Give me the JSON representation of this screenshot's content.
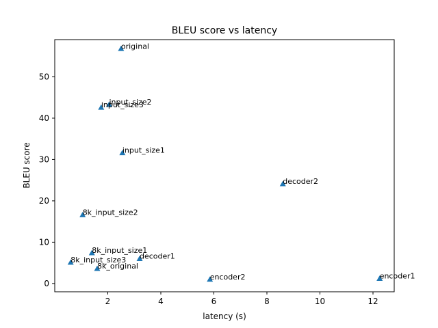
{
  "chart_data": {
    "type": "scatter",
    "title": "BLEU score vs latency",
    "xlabel": "latency (s)",
    "ylabel": "BLEU score",
    "xlim": [
      0,
      12.8
    ],
    "ylim": [
      -2,
      59
    ],
    "xticks": [
      2,
      4,
      6,
      8,
      10,
      12
    ],
    "yticks": [
      0,
      10,
      20,
      30,
      40,
      50
    ],
    "marker": "triangle",
    "color": "#1f77b4",
    "grid": false,
    "points": [
      {
        "label": "original",
        "x": 2.5,
        "y": 56.8
      },
      {
        "label": "input_size2",
        "x": 2.05,
        "y": 43.3
      },
      {
        "label": "input_size3",
        "x": 1.75,
        "y": 42.6
      },
      {
        "label": "input_size1",
        "x": 2.55,
        "y": 31.6
      },
      {
        "label": "decoder2",
        "x": 8.6,
        "y": 24.1
      },
      {
        "label": "8k_input_size2",
        "x": 1.05,
        "y": 16.6
      },
      {
        "label": "8k_input_size1",
        "x": 1.4,
        "y": 7.4
      },
      {
        "label": "decoder1",
        "x": 3.2,
        "y": 6.0
      },
      {
        "label": "8k_input_size3",
        "x": 0.6,
        "y": 5.1
      },
      {
        "label": "8k_original",
        "x": 1.6,
        "y": 3.6
      },
      {
        "label": "encoder2",
        "x": 5.85,
        "y": 1.0
      },
      {
        "label": "encoder1",
        "x": 12.25,
        "y": 1.2
      }
    ]
  }
}
